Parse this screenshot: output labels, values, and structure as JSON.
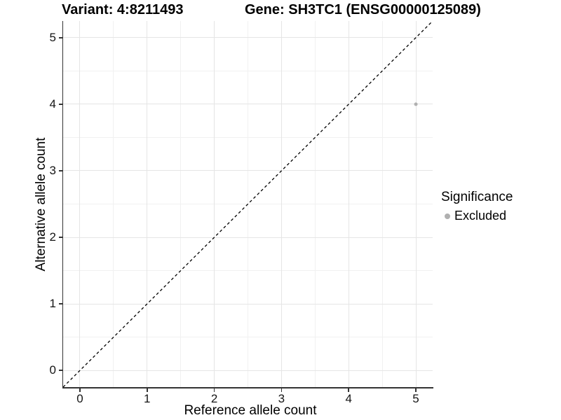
{
  "titles": {
    "variant": "Variant: 4:8211493",
    "gene": "Gene: SH3TC1 (ENSG00000125089)"
  },
  "axes": {
    "x": {
      "label": "Reference allele count"
    },
    "y": {
      "label": "Alternative allele count"
    }
  },
  "legend": {
    "title": "Significance",
    "items": [
      {
        "label": "Excluded",
        "color": "#b0b0b0"
      }
    ]
  },
  "colors": {
    "point": "#b0b0b0",
    "grid_major": "#e5e5e5",
    "grid_minor": "#f1f1f1",
    "axis_line": "#333333",
    "reference_line": "#000000",
    "background": "#ffffff"
  },
  "chart_data": {
    "type": "scatter",
    "title": "Variant: 4:8211493  |  Gene: SH3TC1 (ENSG00000125089)",
    "xlabel": "Reference allele count",
    "ylabel": "Alternative allele count",
    "xlim": [
      -0.25,
      5.25
    ],
    "ylim": [
      -0.25,
      5.25
    ],
    "xticks": [
      0,
      1,
      2,
      3,
      4,
      5
    ],
    "yticks": [
      0,
      1,
      2,
      3,
      4,
      5
    ],
    "x_minor_ticks": [
      0.5,
      1.5,
      2.5,
      3.5,
      4.5
    ],
    "y_minor_ticks": [
      0.5,
      1.5,
      2.5,
      3.5,
      4.5
    ],
    "grid": "major+minor",
    "legend_position": "right",
    "series": [
      {
        "name": "Excluded",
        "color": "#b0b0b0",
        "marker": "circle",
        "marker_radius": 2.5,
        "points": [
          {
            "x": 5,
            "y": 4
          }
        ]
      }
    ],
    "reference_line": {
      "type": "identity",
      "slope": 1,
      "intercept": 0,
      "style": "dashed",
      "color": "#000000"
    }
  }
}
